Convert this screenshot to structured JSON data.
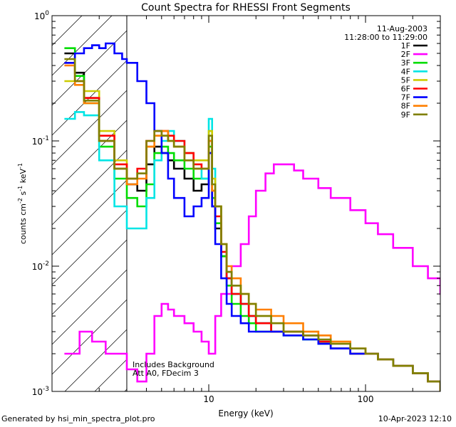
{
  "chart_data": {
    "type": "line",
    "title": "Count Spectra for RHESSI Front Segments",
    "xlabel": "Energy (keV)",
    "ylabel_parts": [
      "counts cm",
      "-2",
      " s",
      "-1",
      " keV",
      "-1"
    ],
    "xscale": "log",
    "yscale": "log",
    "xlim": [
      1,
      300
    ],
    "ylim": [
      0.001,
      1
    ],
    "x_ticks": [
      "10",
      "100"
    ],
    "y_ticks": [
      {
        "base": "10",
        "exp": "0",
        "value": 1
      },
      {
        "base": "10",
        "exp": "-1",
        "value": 0.1
      },
      {
        "base": "10",
        "exp": "-2",
        "value": 0.01
      },
      {
        "base": "10",
        "exp": "-3",
        "value": 0.001
      }
    ],
    "attenuator_boundary_keV": 3,
    "legend_header": [
      "11-Aug-2003",
      "11:28:00 to 11:29:00"
    ],
    "legend_placement": "top-right",
    "annotation": [
      "Includes Background",
      "Att A0, FDecim 3"
    ],
    "series": [
      {
        "name": "1F",
        "color": "#000000",
        "x": [
          1.2,
          1.4,
          1.6,
          2.0,
          2.5,
          3.0,
          3.5,
          4.0,
          4.5,
          5.0,
          5.5,
          6.0,
          7.0,
          8.0,
          9.0,
          10.0,
          10.5,
          11.0,
          12.0,
          13.0,
          14.0,
          16.0,
          18.0,
          20.0,
          25.0,
          30.0,
          40.0,
          50.0,
          60.0,
          80.0,
          100.0,
          120.0,
          150.0,
          200.0,
          250.0,
          300.0
        ],
        "y": [
          0.5,
          0.35,
          0.22,
          0.1,
          0.06,
          0.045,
          0.04,
          0.065,
          0.09,
          0.08,
          0.07,
          0.06,
          0.05,
          0.04,
          0.045,
          0.08,
          0.03,
          0.02,
          0.012,
          0.008,
          0.006,
          0.005,
          0.004,
          0.0035,
          0.003,
          0.003,
          0.0028,
          0.0025,
          0.0022,
          0.002,
          0.002,
          0.0018,
          0.0016,
          0.0014,
          0.0012,
          0.001
        ]
      },
      {
        "name": "2F",
        "color": "#ff00ff",
        "x": [
          1.2,
          1.5,
          1.8,
          2.2,
          2.6,
          3.0,
          3.5,
          4.0,
          4.5,
          5.0,
          5.5,
          6.0,
          7.0,
          8.0,
          9.0,
          10.0,
          11.0,
          12.0,
          14.0,
          16.0,
          18.0,
          20.0,
          23.0,
          26.0,
          30.0,
          35.0,
          40.0,
          50.0,
          60.0,
          80.0,
          100.0,
          120.0,
          150.0,
          200.0,
          250.0,
          300.0
        ],
        "y": [
          0.002,
          0.003,
          0.0025,
          0.002,
          0.002,
          0.0015,
          0.0012,
          0.002,
          0.004,
          0.005,
          0.0045,
          0.004,
          0.0035,
          0.003,
          0.0025,
          0.002,
          0.004,
          0.006,
          0.01,
          0.015,
          0.025,
          0.04,
          0.055,
          0.065,
          0.065,
          0.058,
          0.05,
          0.042,
          0.035,
          0.028,
          0.022,
          0.018,
          0.014,
          0.01,
          0.008,
          0.006
        ]
      },
      {
        "name": "3F",
        "color": "#00dd00",
        "x": [
          1.2,
          1.4,
          1.6,
          2.0,
          2.5,
          3.0,
          3.5,
          4.0,
          4.5,
          5.0,
          5.5,
          6.0,
          7.0,
          8.0,
          9.0,
          10.0,
          10.5,
          11.0,
          12.0,
          13.0,
          14.0,
          16.0,
          18.0,
          20.0,
          25.0,
          30.0,
          40.0,
          50.0,
          60.0,
          80.0,
          100.0,
          120.0,
          150.0,
          200.0,
          250.0,
          300.0
        ],
        "y": [
          0.55,
          0.33,
          0.2,
          0.09,
          0.05,
          0.035,
          0.03,
          0.045,
          0.08,
          0.09,
          0.08,
          0.07,
          0.06,
          0.05,
          0.05,
          0.09,
          0.035,
          0.022,
          0.012,
          0.007,
          0.005,
          0.004,
          0.0035,
          0.003,
          0.003,
          0.0028,
          0.0026,
          0.0024,
          0.0022,
          0.002,
          0.002,
          0.0018,
          0.0016,
          0.0014,
          0.0012,
          0.001
        ]
      },
      {
        "name": "4F",
        "color": "#00e5e5",
        "x": [
          1.2,
          1.4,
          1.6,
          2.0,
          2.5,
          3.0,
          3.5,
          4.0,
          4.5,
          5.0,
          5.5,
          6.0,
          7.0,
          8.0,
          9.0,
          10.0,
          10.5,
          11.0,
          12.0,
          13.0,
          14.0,
          16.0,
          18.0,
          20.0,
          25.0,
          30.0,
          40.0,
          50.0,
          60.0,
          80.0,
          100.0,
          120.0,
          150.0,
          200.0,
          250.0,
          300.0
        ],
        "y": [
          0.15,
          0.17,
          0.16,
          0.07,
          0.03,
          0.02,
          0.02,
          0.035,
          0.07,
          0.1,
          0.12,
          0.1,
          0.08,
          0.06,
          0.05,
          0.15,
          0.06,
          0.03,
          0.015,
          0.008,
          0.006,
          0.005,
          0.004,
          0.0035,
          0.003,
          0.0028,
          0.0026,
          0.0024,
          0.0022,
          0.002,
          0.002,
          0.0018,
          0.0016,
          0.0014,
          0.0012,
          0.001
        ]
      },
      {
        "name": "5F",
        "color": "#cccc00",
        "x": [
          1.2,
          1.4,
          1.6,
          2.0,
          2.5,
          3.0,
          3.5,
          4.0,
          4.5,
          5.0,
          5.5,
          6.0,
          7.0,
          8.0,
          9.0,
          10.0,
          10.5,
          11.0,
          12.0,
          13.0,
          14.0,
          16.0,
          18.0,
          20.0,
          25.0,
          30.0,
          40.0,
          50.0,
          60.0,
          80.0,
          100.0,
          120.0,
          150.0,
          200.0,
          250.0,
          300.0
        ],
        "y": [
          0.3,
          0.3,
          0.25,
          0.12,
          0.07,
          0.05,
          0.055,
          0.09,
          0.11,
          0.11,
          0.1,
          0.09,
          0.08,
          0.07,
          0.07,
          0.12,
          0.05,
          0.03,
          0.015,
          0.009,
          0.007,
          0.006,
          0.005,
          0.004,
          0.0035,
          0.003,
          0.003,
          0.0028,
          0.0025,
          0.0022,
          0.002,
          0.0018,
          0.0016,
          0.0014,
          0.0012,
          0.001
        ]
      },
      {
        "name": "6F",
        "color": "#ff0000",
        "x": [
          1.2,
          1.4,
          1.6,
          2.0,
          2.5,
          3.0,
          3.5,
          4.0,
          4.5,
          5.0,
          5.5,
          6.0,
          7.0,
          8.0,
          9.0,
          10.0,
          10.5,
          11.0,
          12.0,
          13.0,
          14.0,
          16.0,
          18.0,
          20.0,
          25.0,
          30.0,
          40.0,
          50.0,
          60.0,
          80.0,
          100.0,
          120.0,
          150.0,
          200.0,
          250.0,
          300.0
        ],
        "y": [
          0.42,
          0.3,
          0.22,
          0.11,
          0.065,
          0.05,
          0.06,
          0.1,
          0.12,
          0.12,
          0.11,
          0.1,
          0.08,
          0.065,
          0.06,
          0.1,
          0.04,
          0.025,
          0.013,
          0.008,
          0.006,
          0.005,
          0.004,
          0.0035,
          0.003,
          0.003,
          0.0028,
          0.0025,
          0.0022,
          0.002,
          0.002,
          0.0018,
          0.0016,
          0.0014,
          0.0012,
          0.001
        ]
      },
      {
        "name": "7F",
        "color": "#0000ff",
        "x": [
          1.2,
          1.4,
          1.6,
          1.8,
          2.0,
          2.2,
          2.5,
          2.8,
          3.0,
          3.5,
          4.0,
          4.5,
          5.0,
          5.5,
          6.0,
          7.0,
          8.0,
          9.0,
          10.0,
          10.5,
          11.0,
          12.0,
          13.0,
          14.0,
          16.0,
          18.0,
          20.0,
          25.0,
          30.0,
          40.0,
          50.0,
          60.0,
          80.0,
          100.0,
          120.0,
          150.0,
          200.0,
          250.0,
          300.0
        ],
        "y": [
          0.42,
          0.5,
          0.55,
          0.58,
          0.55,
          0.6,
          0.5,
          0.45,
          0.42,
          0.3,
          0.2,
          0.12,
          0.08,
          0.05,
          0.035,
          0.025,
          0.03,
          0.035,
          0.08,
          0.03,
          0.015,
          0.008,
          0.005,
          0.004,
          0.0035,
          0.003,
          0.003,
          0.003,
          0.0028,
          0.0026,
          0.0024,
          0.0022,
          0.002,
          0.002,
          0.0018,
          0.0016,
          0.0014,
          0.0012,
          0.001
        ]
      },
      {
        "name": "8F",
        "color": "#ff7f00",
        "x": [
          1.2,
          1.4,
          1.6,
          2.0,
          2.5,
          3.0,
          3.5,
          4.0,
          4.5,
          5.0,
          5.5,
          6.0,
          7.0,
          8.0,
          9.0,
          10.0,
          10.5,
          11.0,
          12.0,
          13.0,
          14.0,
          16.0,
          18.0,
          20.0,
          25.0,
          30.0,
          40.0,
          50.0,
          60.0,
          80.0,
          100.0,
          120.0,
          150.0,
          200.0,
          250.0,
          300.0
        ],
        "y": [
          0.4,
          0.28,
          0.2,
          0.1,
          0.06,
          0.045,
          0.05,
          0.09,
          0.11,
          0.12,
          0.1,
          0.09,
          0.07,
          0.06,
          0.06,
          0.1,
          0.04,
          0.03,
          0.015,
          0.01,
          0.008,
          0.006,
          0.005,
          0.0045,
          0.004,
          0.0035,
          0.003,
          0.0028,
          0.0025,
          0.0022,
          0.002,
          0.0018,
          0.0016,
          0.0014,
          0.0012,
          0.001
        ]
      },
      {
        "name": "9F",
        "color": "#808000",
        "x": [
          1.2,
          1.4,
          1.6,
          2.0,
          2.5,
          3.0,
          3.5,
          4.0,
          4.5,
          5.0,
          5.5,
          6.0,
          7.0,
          8.0,
          9.0,
          10.0,
          10.5,
          11.0,
          12.0,
          13.0,
          14.0,
          16.0,
          18.0,
          20.0,
          25.0,
          30.0,
          40.0,
          50.0,
          60.0,
          80.0,
          100.0,
          120.0,
          150.0,
          200.0,
          250.0,
          300.0
        ],
        "y": [
          0.45,
          0.3,
          0.21,
          0.1,
          0.06,
          0.05,
          0.055,
          0.1,
          0.12,
          0.11,
          0.1,
          0.09,
          0.07,
          0.06,
          0.06,
          0.11,
          0.045,
          0.03,
          0.015,
          0.009,
          0.007,
          0.006,
          0.005,
          0.004,
          0.0035,
          0.003,
          0.0028,
          0.0026,
          0.0024,
          0.0022,
          0.002,
          0.0018,
          0.0016,
          0.0014,
          0.0012,
          0.001
        ]
      }
    ]
  },
  "footer": {
    "left": "Generated by hsi_min_spectra_plot.pro",
    "right": "10-Apr-2023 12:10"
  }
}
